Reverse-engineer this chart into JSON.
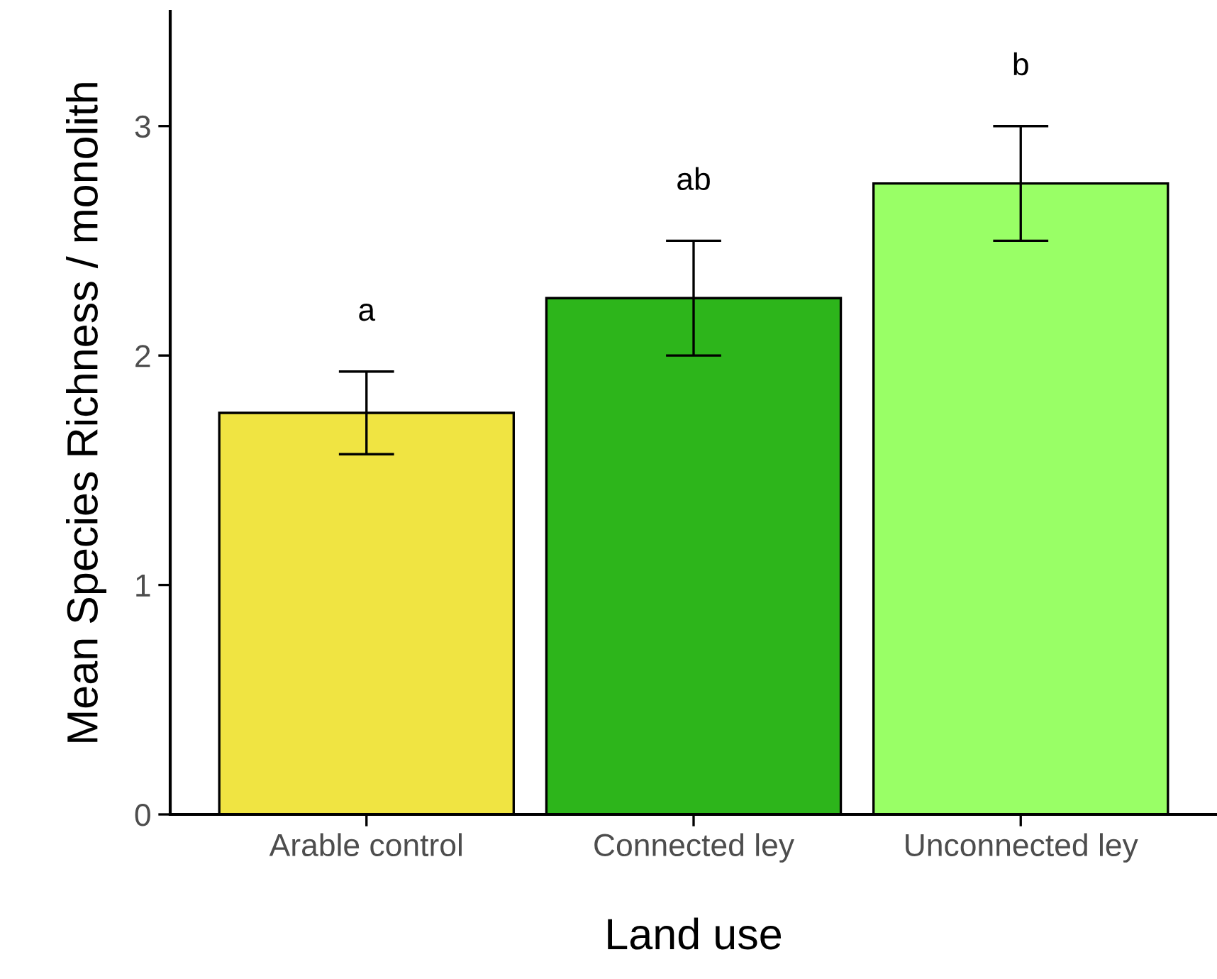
{
  "chart_data": {
    "type": "bar",
    "xlabel": "Land use",
    "ylabel": "Mean Species Richness / monolith",
    "categories": [
      "Arable control",
      "Connected ley",
      "Unconnected ley"
    ],
    "values": [
      1.75,
      2.25,
      2.75
    ],
    "colors": [
      "#f0e442",
      "#2db51b",
      "#99ff66"
    ],
    "errors": [
      [
        1.57,
        1.93
      ],
      [
        2.0,
        2.5
      ],
      [
        2.5,
        3.0
      ]
    ],
    "ylim": [
      0,
      3.5
    ],
    "yticks": [
      0,
      1,
      2,
      3
    ],
    "grid": false,
    "annotations": [
      "a",
      "ab",
      "b"
    ]
  }
}
